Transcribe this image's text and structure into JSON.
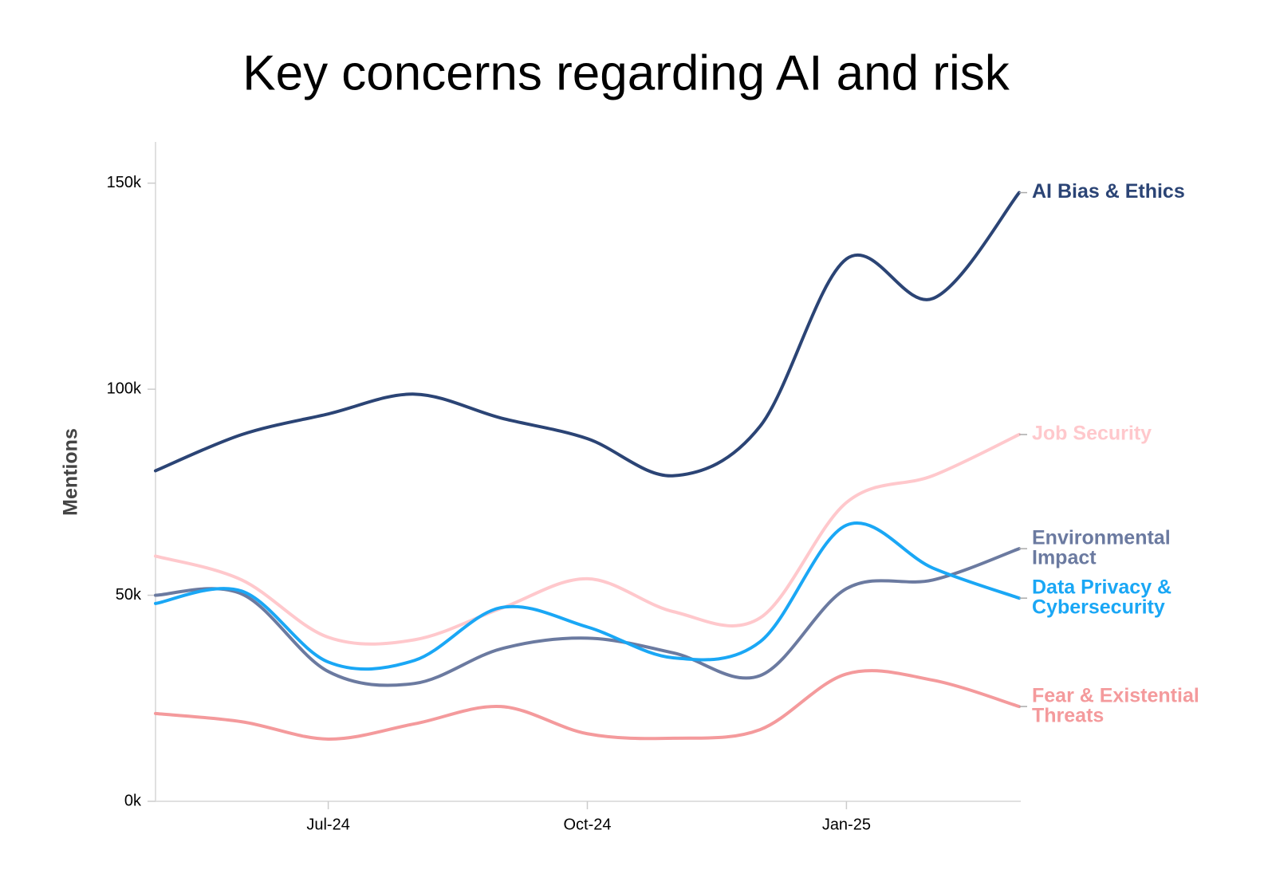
{
  "chart_data": {
    "type": "line",
    "title": "Key concerns regarding AI and risk",
    "y_label": "Mentions",
    "x": [
      "2024-05",
      "2024-06",
      "2024-07",
      "2024-08",
      "2024-09",
      "2024-10",
      "2024-11",
      "2024-12",
      "2025-01",
      "2025-02",
      "2025-03"
    ],
    "xticks": [
      {
        "value": "2024-07",
        "label": "Jul-24"
      },
      {
        "value": "2024-10",
        "label": "Oct-24"
      },
      {
        "value": "2025-01",
        "label": "Jan-25"
      }
    ],
    "ylim": [
      0,
      160000
    ],
    "yticks": [
      {
        "value": 0,
        "label": "0k"
      },
      {
        "value": 50000,
        "label": "50k"
      },
      {
        "value": 100000,
        "label": "100k"
      },
      {
        "value": 150000,
        "label": "150k"
      }
    ],
    "grid": false,
    "series": [
      {
        "name": "AI Bias & Ethics",
        "color": "#2b4475",
        "values": [
          80200,
          89000,
          94000,
          98800,
          93000,
          88000,
          79000,
          91000,
          131600,
          122000,
          147700
        ]
      },
      {
        "name": "Job Security",
        "color": "#ffc8cc",
        "values": [
          59500,
          53700,
          39800,
          39200,
          46800,
          54000,
          46000,
          44500,
          72500,
          79000,
          89000
        ]
      },
      {
        "name": "Environmental Impact",
        "color": "#6b7aa0",
        "values": [
          50000,
          50300,
          31500,
          28600,
          37000,
          39600,
          36000,
          30500,
          51600,
          53700,
          61300
        ]
      },
      {
        "name": "Data Privacy & Cybersecurity",
        "color": "#1aa7f5",
        "values": [
          48000,
          51000,
          33800,
          34200,
          47000,
          42300,
          34800,
          38700,
          67000,
          56600,
          49300
        ]
      },
      {
        "name": "Fear & Existential Threats",
        "color": "#f49a9c",
        "values": [
          21300,
          19300,
          15100,
          18800,
          23000,
          16400,
          15300,
          17400,
          30900,
          29400,
          23000
        ]
      }
    ]
  }
}
